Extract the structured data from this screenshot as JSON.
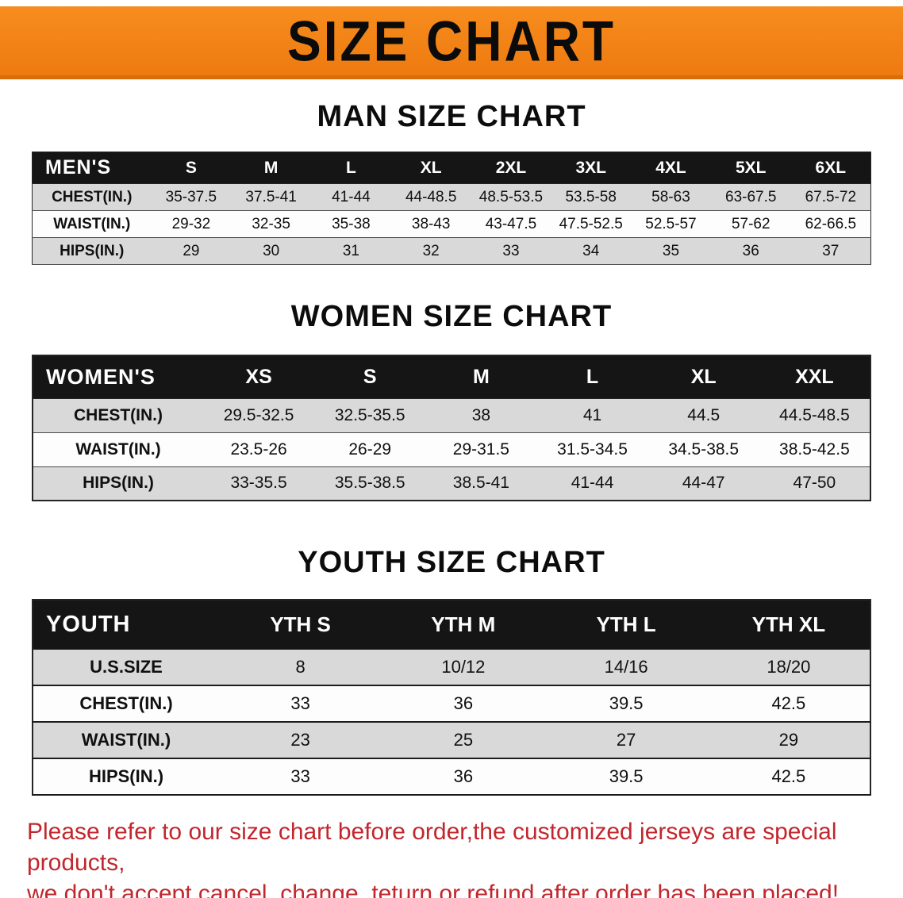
{
  "banner": {
    "title": "SIZE CHART"
  },
  "colors": {
    "banner_orange": "#f5821f",
    "header_black": "#151515",
    "row_gray": "#d9d9d9",
    "note_red": "#c1272d"
  },
  "sections": [
    {
      "id": "men",
      "heading": "MAN SIZE CHART",
      "table": {
        "header": [
          "MEN'S",
          "S",
          "M",
          "L",
          "XL",
          "2XL",
          "3XL",
          "4XL",
          "5XL",
          "6XL"
        ],
        "rows": [
          {
            "label": "CHEST(IN.)",
            "values": [
              "35-37.5",
              "37.5-41",
              "41-44",
              "44-48.5",
              "48.5-53.5",
              "53.5-58",
              "58-63",
              "63-67.5",
              "67.5-72"
            ]
          },
          {
            "label": "WAIST(IN.)",
            "values": [
              "29-32",
              "32-35",
              "35-38",
              "38-43",
              "43-47.5",
              "47.5-52.5",
              "52.5-57",
              "57-62",
              "62-66.5"
            ]
          },
          {
            "label": "HIPS(IN.)",
            "values": [
              "29",
              "30",
              "31",
              "32",
              "33",
              "34",
              "35",
              "36",
              "37"
            ]
          }
        ]
      }
    },
    {
      "id": "women",
      "heading": "WOMEN SIZE CHART",
      "table": {
        "header": [
          "WOMEN'S",
          "XS",
          "S",
          "M",
          "L",
          "XL",
          "XXL"
        ],
        "rows": [
          {
            "label": "CHEST(IN.)",
            "values": [
              "29.5-32.5",
              "32.5-35.5",
              "38",
              "41",
              "44.5",
              "44.5-48.5"
            ]
          },
          {
            "label": "WAIST(IN.)",
            "values": [
              "23.5-26",
              "26-29",
              "29-31.5",
              "31.5-34.5",
              "34.5-38.5",
              "38.5-42.5"
            ]
          },
          {
            "label": "HIPS(IN.)",
            "values": [
              "33-35.5",
              "35.5-38.5",
              "38.5-41",
              "41-44",
              "44-47",
              "47-50"
            ]
          }
        ]
      }
    },
    {
      "id": "youth",
      "heading": "YOUTH SIZE CHART",
      "table": {
        "header": [
          "YOUTH",
          "YTH S",
          "YTH M",
          "YTH L",
          "YTH XL"
        ],
        "rows": [
          {
            "label": "U.S.SIZE",
            "values": [
              "8",
              "10/12",
              "14/16",
              "18/20"
            ]
          },
          {
            "label": "CHEST(IN.)",
            "values": [
              "33",
              "36",
              "39.5",
              "42.5"
            ]
          },
          {
            "label": "WAIST(IN.)",
            "values": [
              "23",
              "25",
              "27",
              "29"
            ]
          },
          {
            "label": "HIPS(IN.)",
            "values": [
              "33",
              "36",
              "39.5",
              "42.5"
            ]
          }
        ]
      }
    }
  ],
  "footnote": {
    "line1": "Please refer to our size chart before order,the customized jerseys are special products,",
    "line2": "we don't accept cancel, change, teturn or refund after order has been placed!"
  }
}
